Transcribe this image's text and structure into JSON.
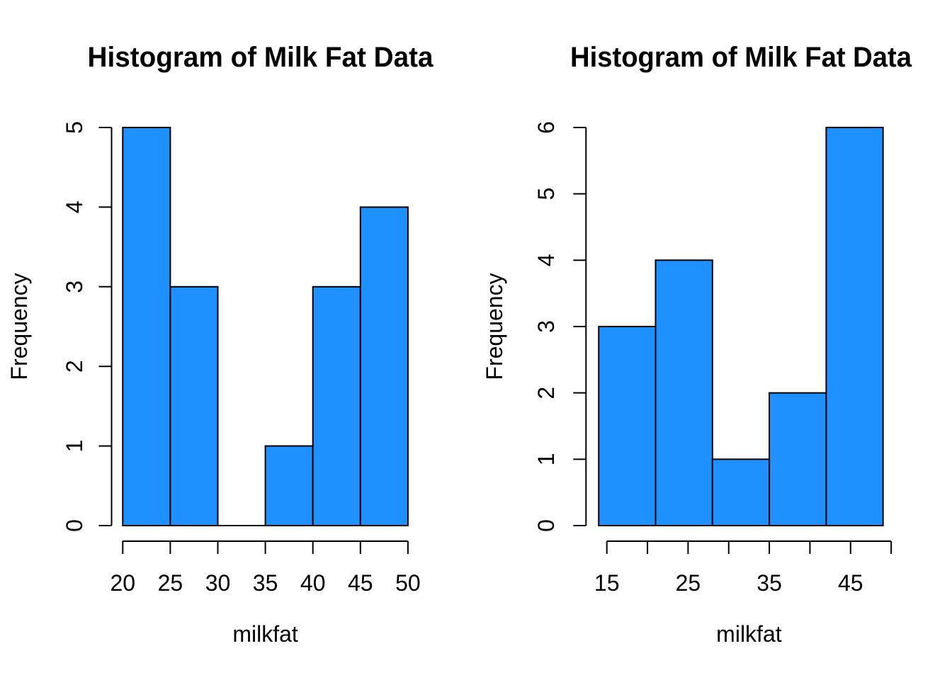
{
  "figure": {
    "background": "#FFFFFF"
  },
  "chart_data": [
    {
      "type": "bar",
      "subtype": "histogram",
      "title": "Histogram of Milk Fat Data",
      "xlabel": "milkfat",
      "ylabel": "Frequency",
      "bin_edges": [
        20,
        25,
        30,
        35,
        40,
        45,
        50
      ],
      "counts": [
        5,
        3,
        0,
        1,
        3,
        4
      ],
      "x_tick_values": [
        20,
        25,
        30,
        35,
        40,
        45,
        50
      ],
      "x_tick_labels": [
        "20",
        "25",
        "30",
        "35",
        "40",
        "45",
        "50"
      ],
      "y_tick_values": [
        0,
        1,
        2,
        3,
        4,
        5
      ],
      "y_tick_labels": [
        "0",
        "1",
        "2",
        "3",
        "4",
        "5"
      ],
      "xlim": [
        20,
        50
      ],
      "ylim": [
        0,
        5
      ],
      "grid": false,
      "legend": null,
      "bar_fill": "#1E90FF",
      "bar_stroke": "#000000",
      "axis_color": "#000000"
    },
    {
      "type": "bar",
      "subtype": "histogram",
      "title": "Histogram of Milk Fat Data",
      "xlabel": "milkfat",
      "ylabel": "Frequency",
      "bin_edges": [
        14,
        21,
        28,
        35,
        42,
        49
      ],
      "counts": [
        3,
        4,
        1,
        2,
        6
      ],
      "x_tick_values": [
        15,
        20,
        25,
        30,
        35,
        40,
        45,
        50
      ],
      "x_tick_labels": [
        "15",
        "",
        "25",
        "",
        "35",
        "",
        "45",
        ""
      ],
      "y_tick_values": [
        0,
        1,
        2,
        3,
        4,
        5,
        6
      ],
      "y_tick_labels": [
        "0",
        "1",
        "2",
        "3",
        "4",
        "5",
        "6"
      ],
      "xlim": [
        14,
        50
      ],
      "ylim": [
        0,
        6
      ],
      "grid": false,
      "legend": null,
      "bar_fill": "#1E90FF",
      "bar_stroke": "#000000",
      "axis_color": "#000000"
    }
  ]
}
